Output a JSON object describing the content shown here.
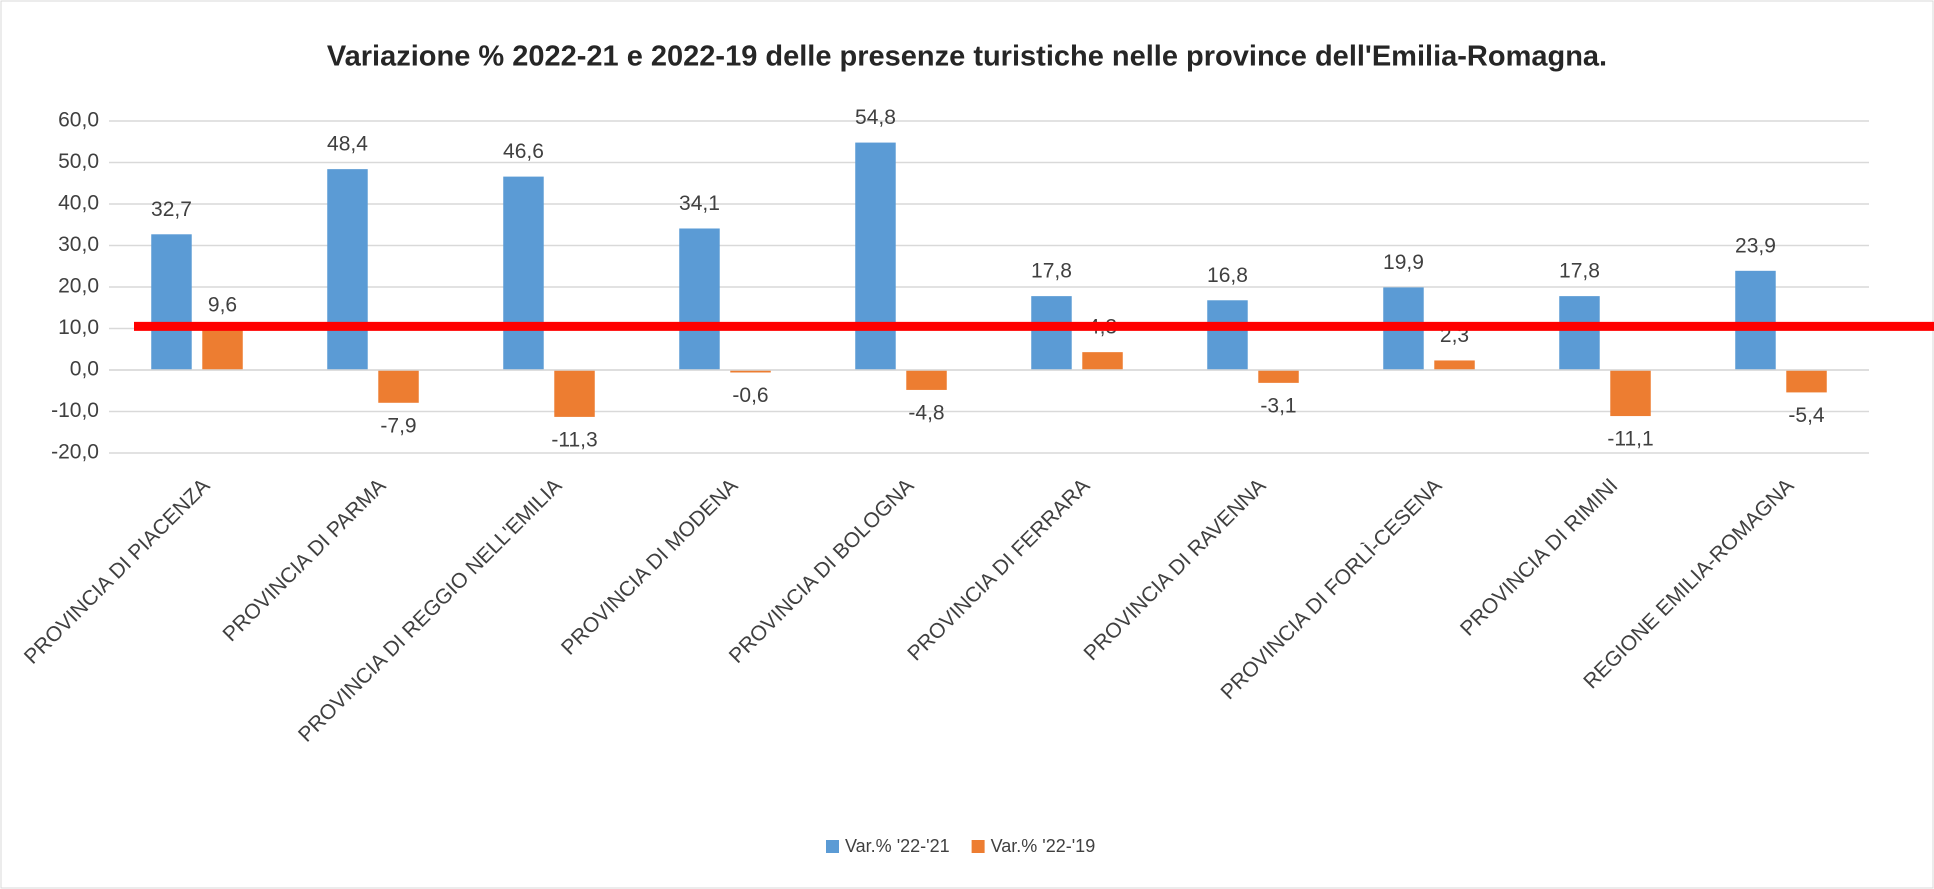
{
  "chart_data": {
    "type": "bar",
    "title": "Variazione % 2022-21 e 2022-19 delle presenze turistiche nelle province dell'Emilia-Romagna.",
    "categories": [
      "PROVINCIA DI PIACENZA",
      "PROVINCIA DI PARMA",
      "PROVINCIA DI REGGIO NELL'EMILIA",
      "PROVINCIA DI MODENA",
      "PROVINCIA DI BOLOGNA",
      "PROVINCIA DI FERRARA",
      "PROVINCIA DI RAVENNA",
      "PROVINCIA DI FORLÌ-CESENA",
      "PROVINCIA DI RIMINI",
      "REGIONE EMILIA-ROMAGNA"
    ],
    "series": [
      {
        "name": "Var.% '22-'21",
        "color": "#5b9bd5",
        "values": [
          32.7,
          48.4,
          46.6,
          34.1,
          54.8,
          17.8,
          16.8,
          19.9,
          17.8,
          23.9
        ],
        "value_labels": [
          "32,7",
          "48,4",
          "46,6",
          "34,1",
          "54,8",
          "17,8",
          "16,8",
          "19,9",
          "17,8",
          "23,9"
        ]
      },
      {
        "name": "Var.% '22-'19",
        "color": "#ed7d31",
        "values": [
          9.6,
          -7.9,
          -11.3,
          -0.6,
          -4.8,
          4.3,
          -3.1,
          2.3,
          -11.1,
          -5.4
        ],
        "value_labels": [
          "9,6",
          "-7,9",
          "-11,3",
          "-0,6",
          "-4,8",
          "4,3",
          "-3,1",
          "2,3",
          "-11,1",
          "-5,4"
        ]
      }
    ],
    "ylim": [
      -20,
      60
    ],
    "yticks": [
      {
        "value": -20,
        "label": "-20,0"
      },
      {
        "value": -10,
        "label": "-10,0"
      },
      {
        "value": 0,
        "label": "0,0"
      },
      {
        "value": 10,
        "label": "10,0"
      },
      {
        "value": 20,
        "label": "20,0"
      },
      {
        "value": 30,
        "label": "30,0"
      },
      {
        "value": 40,
        "label": "40,0"
      },
      {
        "value": 50,
        "label": "50,0"
      },
      {
        "value": 60,
        "label": "60,0"
      }
    ],
    "grid": true,
    "legend": "bottom",
    "reference_line": {
      "value": 10.5,
      "color": "#ff0000"
    }
  }
}
